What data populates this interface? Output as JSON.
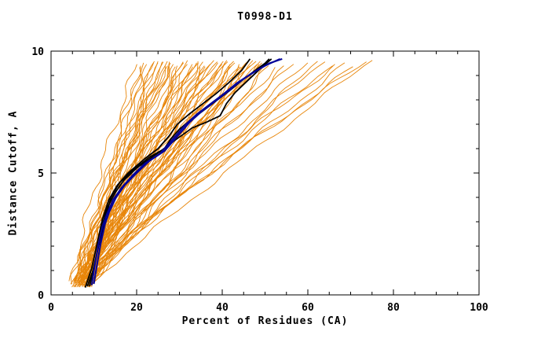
{
  "chart_data": {
    "type": "line",
    "title": "T0998-D1",
    "xlabel": "Percent of Residues (CA)",
    "ylabel": "Distance Cutoff, A",
    "xlim": [
      0,
      100
    ],
    "ylim": [
      0,
      10
    ],
    "x_ticks": [
      0,
      20,
      40,
      60,
      80,
      100
    ],
    "y_ticks": [
      0,
      5,
      10
    ],
    "x_minor_step": 5,
    "y_minor_step": 1,
    "grid": false,
    "legend": "none",
    "colors": {
      "model": "#e8860a",
      "black_highlight": "#000000",
      "navy_highlight": "#000099"
    },
    "model_series_note": "each model curve given as [percent_at_low_cutoff, percent_at_cutoff_9.65, shape_exponent, wiggle_phase]",
    "models": [
      [
        5.0,
        21,
        1.0,
        0.3
      ],
      [
        6.2,
        22,
        1.1,
        1.1
      ],
      [
        7.5,
        23,
        0.95,
        2.0
      ],
      [
        8.8,
        24,
        1.2,
        2.9
      ],
      [
        4.8,
        25,
        1.05,
        3.7
      ],
      [
        6.0,
        26,
        0.9,
        4.6
      ],
      [
        7.2,
        27,
        1.15,
        5.4
      ],
      [
        8.5,
        28,
        1.0,
        0.2
      ],
      [
        5.5,
        29,
        1.25,
        1.0
      ],
      [
        6.8,
        30,
        0.92,
        1.9
      ],
      [
        8.0,
        31,
        1.1,
        2.7
      ],
      [
        9.2,
        32,
        1.3,
        3.6
      ],
      [
        5.2,
        33,
        0.98,
        4.4
      ],
      [
        6.5,
        34,
        1.18,
        5.3
      ],
      [
        7.8,
        35,
        1.02,
        0.1
      ],
      [
        9.0,
        36,
        1.22,
        0.9
      ],
      [
        5.8,
        37,
        0.94,
        1.8
      ],
      [
        7.0,
        38,
        1.12,
        2.6
      ],
      [
        8.2,
        39,
        1.28,
        3.5
      ],
      [
        9.5,
        40,
        1.04,
        4.3
      ],
      [
        5.4,
        41,
        1.16,
        5.2
      ],
      [
        6.6,
        42,
        0.96,
        6.0
      ],
      [
        7.9,
        43,
        1.08,
        0.8
      ],
      [
        9.1,
        44,
        1.24,
        1.7
      ],
      [
        5.6,
        45,
        1.0,
        2.5
      ],
      [
        6.9,
        46,
        1.14,
        3.4
      ],
      [
        8.1,
        47,
        0.93,
        4.2
      ],
      [
        9.3,
        48,
        1.2,
        5.1
      ],
      [
        5.9,
        49,
        1.06,
        5.9
      ],
      [
        7.1,
        50,
        1.26,
        0.7
      ],
      [
        8.4,
        51,
        0.97,
        1.6
      ],
      [
        9.6,
        52,
        1.1,
        2.4
      ],
      [
        5.1,
        20.5,
        1.3,
        3.3
      ],
      [
        6.3,
        21.5,
        1.02,
        4.1
      ],
      [
        7.6,
        23.5,
        1.18,
        5.0
      ],
      [
        8.9,
        25.5,
        0.95,
        5.8
      ],
      [
        5.3,
        27.5,
        1.22,
        0.6
      ],
      [
        6.4,
        29.5,
        1.05,
        1.5
      ],
      [
        7.7,
        31.5,
        1.15,
        2.3
      ],
      [
        9.0,
        33.5,
        0.9,
        3.2
      ],
      [
        5.7,
        35.5,
        1.24,
        4.0
      ],
      [
        6.7,
        37.5,
        1.0,
        4.9
      ],
      [
        8.0,
        39.5,
        1.12,
        5.7
      ],
      [
        9.2,
        41.5,
        1.28,
        0.5
      ],
      [
        5.0,
        43.5,
        1.08,
        1.4
      ],
      [
        6.1,
        45.5,
        0.92,
        2.2
      ],
      [
        7.4,
        47.5,
        1.2,
        3.1
      ],
      [
        8.6,
        49.5,
        1.02,
        3.9
      ],
      [
        9.8,
        24.5,
        1.16,
        4.8
      ],
      [
        5.2,
        26.5,
        0.98,
        5.6
      ],
      [
        6.6,
        28.5,
        1.26,
        0.4
      ],
      [
        7.8,
        30.5,
        1.04,
        1.3
      ],
      [
        9.1,
        32.5,
        1.14,
        2.1
      ],
      [
        5.5,
        34.5,
        0.96,
        3.0
      ],
      [
        6.8,
        36.5,
        1.1,
        3.8
      ],
      [
        8.3,
        38.5,
        1.3,
        4.7
      ],
      [
        9.4,
        40.5,
        1.0,
        5.5
      ],
      [
        5.8,
        44.5,
        1.2,
        0.2
      ],
      [
        7.2,
        46.5,
        1.06,
        1.2
      ],
      [
        8.7,
        48.5,
        1.18,
        2.0
      ],
      [
        6.0,
        54,
        1.15,
        0.9
      ],
      [
        7.5,
        56,
        1.05,
        1.8
      ],
      [
        9.0,
        58,
        1.2,
        2.7
      ],
      [
        6.5,
        60,
        1.1,
        3.5
      ],
      [
        8.0,
        62,
        0.98,
        4.4
      ],
      [
        9.5,
        64,
        1.18,
        5.2
      ],
      [
        7.0,
        66,
        1.08,
        6.0
      ],
      [
        8.5,
        68,
        1.22,
        0.8
      ],
      [
        6.2,
        70,
        1.02,
        1.7
      ],
      [
        7.8,
        72,
        1.12,
        2.6
      ],
      [
        9.2,
        74,
        1.25,
        3.4
      ],
      [
        8.8,
        75,
        1.05,
        4.3
      ]
    ],
    "highlights": [
      {
        "color": "#000000",
        "width": 1.8,
        "points": [
          [
            9,
            0.35
          ],
          [
            10,
            1.1
          ],
          [
            11.2,
            2.1
          ],
          [
            12.2,
            3.0
          ],
          [
            13.2,
            3.6
          ],
          [
            15,
            4.2
          ],
          [
            17,
            4.7
          ],
          [
            20,
            5.2
          ],
          [
            24,
            5.7
          ],
          [
            26.5,
            6.0
          ],
          [
            28,
            6.4
          ],
          [
            30,
            6.8
          ],
          [
            32.5,
            7.15
          ],
          [
            35.5,
            7.55
          ],
          [
            38.5,
            7.95
          ],
          [
            41.5,
            8.35
          ],
          [
            45,
            8.85
          ],
          [
            48,
            9.25
          ],
          [
            50,
            9.5
          ],
          [
            51,
            9.68
          ]
        ]
      },
      {
        "color": "#000000",
        "width": 1.8,
        "points": [
          [
            8.5,
            0.35
          ],
          [
            9.8,
            1.0
          ],
          [
            11.5,
            2.3
          ],
          [
            12.8,
            3.2
          ],
          [
            14,
            4.0
          ],
          [
            16,
            4.6
          ],
          [
            19,
            5.1
          ],
          [
            23,
            5.65
          ],
          [
            26,
            5.95
          ],
          [
            29,
            6.35
          ],
          [
            33,
            6.85
          ],
          [
            36.5,
            7.1
          ],
          [
            39.5,
            7.35
          ],
          [
            41,
            7.85
          ],
          [
            43,
            8.3
          ],
          [
            46,
            8.8
          ],
          [
            49,
            9.3
          ],
          [
            51.5,
            9.68
          ]
        ]
      },
      {
        "color": "#000000",
        "width": 1.8,
        "points": [
          [
            8,
            0.3
          ],
          [
            9.5,
            1.1
          ],
          [
            11,
            2.3
          ],
          [
            12,
            3.1
          ],
          [
            13.5,
            3.9
          ],
          [
            15.5,
            4.5
          ],
          [
            18,
            5.0
          ],
          [
            22,
            5.6
          ],
          [
            25,
            6.0
          ],
          [
            27.5,
            6.5
          ],
          [
            29.5,
            7.0
          ],
          [
            32.5,
            7.45
          ],
          [
            35.5,
            7.85
          ],
          [
            38.5,
            8.25
          ],
          [
            41.5,
            8.7
          ],
          [
            44.5,
            9.2
          ],
          [
            46.5,
            9.68
          ]
        ]
      },
      {
        "color": "#000099",
        "width": 2.0,
        "points": [
          [
            9.5,
            0.4
          ],
          [
            10.2,
            1.2
          ],
          [
            11,
            2.0
          ],
          [
            12,
            2.8
          ],
          [
            13,
            3.3
          ],
          [
            14.5,
            3.9
          ],
          [
            16.5,
            4.4
          ],
          [
            19,
            4.9
          ],
          [
            22,
            5.4
          ],
          [
            25.5,
            5.8
          ],
          [
            27.5,
            6.2
          ],
          [
            29.5,
            6.6
          ],
          [
            31.5,
            7.0
          ],
          [
            34,
            7.4
          ],
          [
            37,
            7.8
          ],
          [
            40,
            8.2
          ],
          [
            43.5,
            8.7
          ],
          [
            47,
            9.1
          ],
          [
            50,
            9.4
          ],
          [
            52.5,
            9.6
          ],
          [
            53.5,
            9.68
          ]
        ]
      },
      {
        "color": "#000099",
        "width": 2.0,
        "points": [
          [
            10,
            0.45
          ],
          [
            10.8,
            1.3
          ],
          [
            11.6,
            2.1
          ],
          [
            12.6,
            2.9
          ],
          [
            13.6,
            3.4
          ],
          [
            15.2,
            4.0
          ],
          [
            17.2,
            4.5
          ],
          [
            20,
            5.0
          ],
          [
            23,
            5.5
          ],
          [
            26.5,
            5.9
          ],
          [
            28.5,
            6.3
          ],
          [
            30.5,
            6.7
          ],
          [
            32.5,
            7.1
          ],
          [
            35,
            7.5
          ],
          [
            38,
            7.9
          ],
          [
            41,
            8.3
          ],
          [
            44.5,
            8.8
          ],
          [
            48,
            9.2
          ],
          [
            51,
            9.5
          ],
          [
            54,
            9.68
          ]
        ]
      }
    ]
  }
}
